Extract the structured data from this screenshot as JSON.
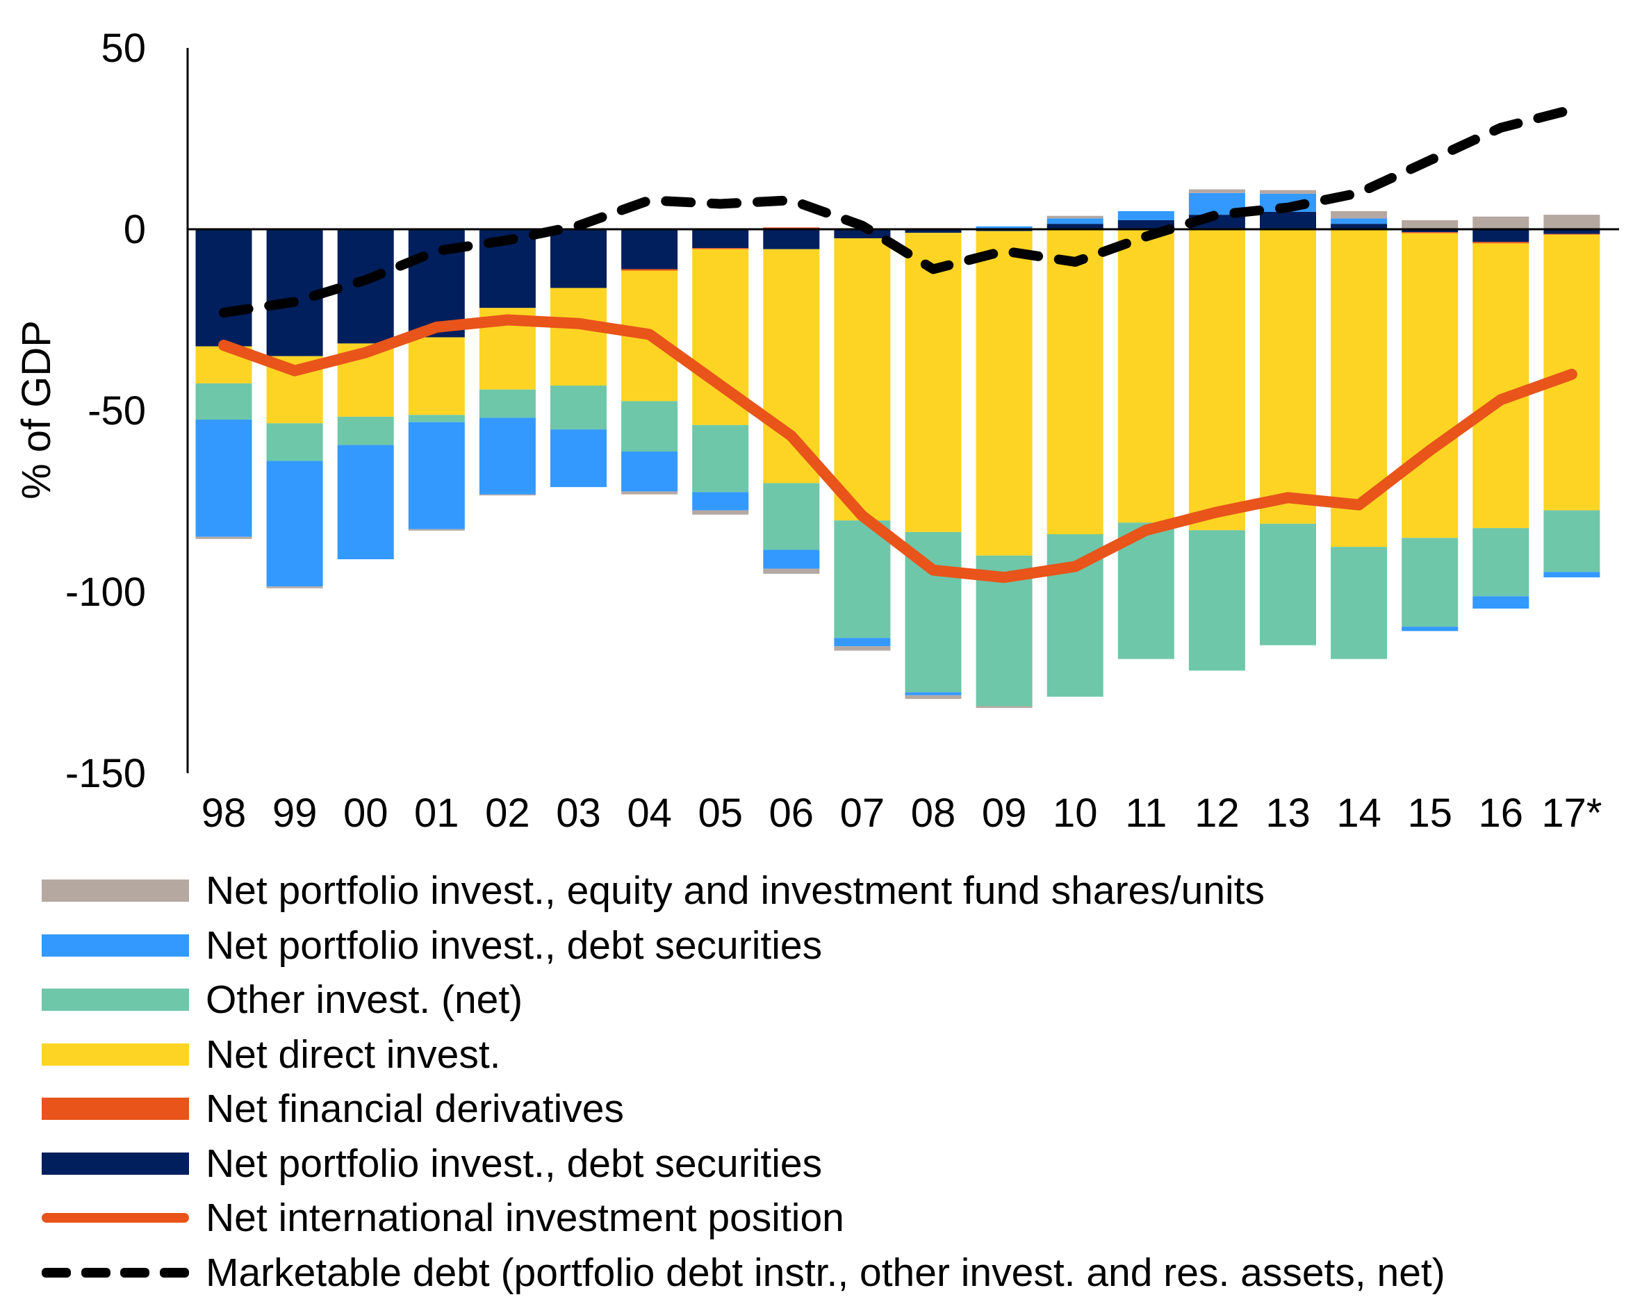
{
  "chart_data": {
    "type": "bar",
    "stacked": true,
    "title": "",
    "xlabel": "",
    "ylabel": "% of GDP",
    "ylim": [
      -150,
      50
    ],
    "yticks": [
      50,
      0,
      -50,
      -100,
      -150
    ],
    "grid": false,
    "legend_position": "bottom",
    "categories": [
      "98",
      "99",
      "00",
      "01",
      "02",
      "03",
      "04",
      "05",
      "06",
      "07",
      "08",
      "09",
      "10",
      "11",
      "12",
      "13",
      "14",
      "15",
      "16",
      "17*"
    ],
    "series": [
      {
        "name": "Net portfolio invest., debt securities",
        "key": "navy",
        "kind": "bar",
        "color": "#001f5c",
        "values": [
          -32.3,
          -35,
          -31.5,
          -29.8,
          -21.7,
          -16.2,
          -11,
          -5.2,
          -5.5,
          -2.5,
          -1,
          -0.5,
          1.5,
          2.5,
          4,
          4.5,
          1.5,
          -0.8,
          -3.5,
          -1.3
        ]
      },
      {
        "name": "Net financial derivatives",
        "key": "deriv",
        "kind": "bar",
        "color": "#e8541a",
        "values": [
          0,
          0,
          0,
          0,
          0,
          0,
          -0.4,
          -0.3,
          0.5,
          0,
          0.3,
          0,
          0,
          0,
          0,
          0.3,
          0,
          -0.3,
          -0.4,
          -0.2
        ]
      },
      {
        "name": "Net direct invest.",
        "key": "fdi",
        "kind": "bar",
        "color": "#fdd424",
        "values": [
          -10.2,
          -18.5,
          -20.2,
          -21.4,
          -22.5,
          -26.9,
          -36,
          -48.5,
          -64.5,
          -77.8,
          -82.5,
          -89.5,
          -84.1,
          -80.9,
          -83,
          -81.2,
          -87.6,
          -84,
          -78.5,
          -76
        ]
      },
      {
        "name": "Other invest. (net)",
        "key": "other",
        "kind": "bar",
        "color": "#6ec7a8",
        "values": [
          -10,
          -10.4,
          -7.8,
          -2,
          -7.8,
          -12.1,
          -13.9,
          -18.5,
          -18.4,
          -32.4,
          -44.2,
          -41.5,
          -44.8,
          -37.6,
          -38.7,
          -33.5,
          -30.9,
          -24.5,
          -18.8,
          -17
        ]
      },
      {
        "name": "Net portfolio invest., debt securities",
        "key": "pdebt",
        "kind": "bar",
        "color": "#3399ff",
        "values": [
          -32.3,
          -34.6,
          -31.5,
          -29.5,
          -21.1,
          -15.9,
          -11,
          -5,
          -5.2,
          -2.3,
          -0.8,
          0.8,
          1.5,
          2.5,
          6,
          5,
          1.5,
          -1.2,
          -3.4,
          -1.5
        ]
      },
      {
        "name": "Net portfolio invest., equity and investment fund shares/units",
        "key": "equity",
        "kind": "bar",
        "color": "#b5a8a1",
        "values": [
          -0.6,
          -0.5,
          0,
          -0.4,
          -0.3,
          0,
          -0.8,
          -1.2,
          -1.4,
          -1.2,
          -1,
          -0.5,
          0.7,
          0,
          1,
          1,
          2,
          2.5,
          3.5,
          4
        ]
      },
      {
        "name": "Net international investment position",
        "key": "niip",
        "kind": "line",
        "color": "#e8541a",
        "values": [
          -32,
          -39,
          -34,
          -27,
          -25,
          -26,
          -29,
          -43,
          -57,
          -79,
          -94,
          -96,
          -93,
          -83,
          -78,
          -74,
          -76,
          -61,
          -47,
          -40
        ]
      },
      {
        "name": "Marketable debt (portfolio debt instr., other invest. and res. assets, net)",
        "key": "mdebt",
        "kind": "dashed-line",
        "color": "#000000",
        "values": [
          -23,
          -20,
          -14,
          -6,
          -3,
          1,
          8,
          7,
          8,
          1,
          -11,
          -6,
          -9,
          -2,
          4,
          6,
          10,
          19,
          28,
          33
        ]
      }
    ],
    "stack_order_negative": [
      "navy",
      "deriv",
      "fdi",
      "other",
      "pdebt",
      "equity"
    ],
    "stack_order_positive": [
      "deriv",
      "navy",
      "pdebt",
      "equity"
    ]
  },
  "legend": [
    {
      "label": "Net portfolio invest., equity and investment fund shares/units",
      "color": "#b5a8a1",
      "type": "box"
    },
    {
      "label": "Net portfolio invest., debt securities",
      "color": "#3399ff",
      "type": "box"
    },
    {
      "label": "Other invest. (net)",
      "color": "#6ec7a8",
      "type": "box"
    },
    {
      "label": "Net direct invest.",
      "color": "#fdd424",
      "type": "box"
    },
    {
      "label": "Net financial derivatives",
      "color": "#e8541a",
      "type": "box"
    },
    {
      "label": "Net portfolio invest., debt securities",
      "color": "#001f5c",
      "type": "box"
    },
    {
      "label": "Net international investment position",
      "color": "#e8541a",
      "type": "line"
    },
    {
      "label": "Marketable debt (portfolio debt instr., other invest. and res. assets, net)",
      "color": "#000000",
      "type": "dash"
    }
  ]
}
